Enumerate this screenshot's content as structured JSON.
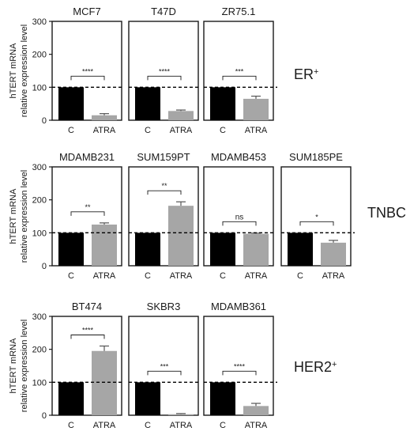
{
  "chart_data": [
    {
      "type": "bar",
      "title": "MCF7",
      "ylabel": "hTERT mRNA\nrelative expression level",
      "group_label": "ER",
      "group_label_sup": "+",
      "categories": [
        "C",
        "ATRA"
      ],
      "values": [
        100,
        15
      ],
      "errors": [
        0,
        5
      ],
      "ylim": [
        0,
        300
      ],
      "yticks": [
        "0",
        "100",
        "200",
        "300"
      ],
      "reference_line": 100,
      "significance": "****"
    },
    {
      "type": "bar",
      "title": "T47D",
      "categories": [
        "C",
        "ATRA"
      ],
      "values": [
        100,
        28
      ],
      "errors": [
        0,
        3
      ],
      "ylim": [
        0,
        300
      ],
      "reference_line": 100,
      "significance": "****"
    },
    {
      "type": "bar",
      "title": "ZR75.1",
      "categories": [
        "C",
        "ATRA"
      ],
      "values": [
        100,
        65
      ],
      "errors": [
        0,
        8
      ],
      "ylim": [
        0,
        300
      ],
      "reference_line": 100,
      "significance": "***"
    },
    {
      "type": "bar",
      "title": "MDAMB231",
      "ylabel": "hTERT mRNA\nrelative expression level",
      "group_label": "TNBC",
      "group_label_sup": "",
      "categories": [
        "C",
        "ATRA"
      ],
      "values": [
        100,
        125
      ],
      "errors": [
        0,
        5
      ],
      "ylim": [
        0,
        300
      ],
      "yticks": [
        "0",
        "100",
        "200",
        "300"
      ],
      "reference_line": 100,
      "significance": "**"
    },
    {
      "type": "bar",
      "title": "SUM159PT",
      "categories": [
        "C",
        "ATRA"
      ],
      "values": [
        100,
        182
      ],
      "errors": [
        0,
        12
      ],
      "ylim": [
        0,
        300
      ],
      "reference_line": 100,
      "significance": "**"
    },
    {
      "type": "bar",
      "title": "MDAMB453",
      "categories": [
        "C",
        "ATRA"
      ],
      "values": [
        100,
        97
      ],
      "errors": [
        0,
        2
      ],
      "ylim": [
        0,
        300
      ],
      "reference_line": 100,
      "significance": "ns"
    },
    {
      "type": "bar",
      "title": "SUM185PE",
      "categories": [
        "C",
        "ATRA"
      ],
      "values": [
        100,
        70
      ],
      "errors": [
        0,
        7
      ],
      "ylim": [
        0,
        300
      ],
      "reference_line": 100,
      "significance": "*"
    },
    {
      "type": "bar",
      "title": "BT474",
      "ylabel": "hTERT mRNA\nrelative expression level",
      "group_label": "HER2",
      "group_label_sup": "+",
      "categories": [
        "C",
        "ATRA"
      ],
      "values": [
        100,
        195
      ],
      "errors": [
        0,
        15
      ],
      "ylim": [
        0,
        300
      ],
      "yticks": [
        "0",
        "100",
        "200",
        "300"
      ],
      "reference_line": 100,
      "significance": "****"
    },
    {
      "type": "bar",
      "title": "SKBR3",
      "categories": [
        "C",
        "ATRA"
      ],
      "values": [
        100,
        3
      ],
      "errors": [
        0,
        2
      ],
      "ylim": [
        0,
        300
      ],
      "reference_line": 100,
      "significance": "***"
    },
    {
      "type": "bar",
      "title": "MDAMB361",
      "categories": [
        "C",
        "ATRA"
      ],
      "values": [
        100,
        28
      ],
      "errors": [
        0,
        8
      ],
      "ylim": [
        0,
        300
      ],
      "reference_line": 100,
      "significance": "****"
    }
  ],
  "colors": {
    "control": "#000000",
    "atra": "#a6a6a6",
    "frame": "#1a1a1a"
  }
}
